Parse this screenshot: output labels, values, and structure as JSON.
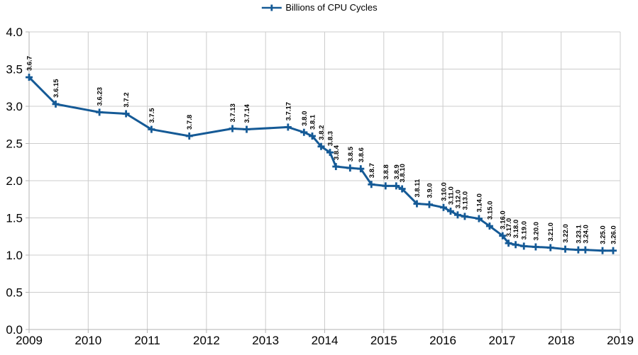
{
  "chart_data": {
    "type": "line",
    "title": "",
    "xlabel": "",
    "ylabel": "",
    "legend": {
      "label": "Billions of CPU Cycles",
      "position": "top-center",
      "marker": "line-plus"
    },
    "xlim": [
      2009,
      2019
    ],
    "ylim": [
      0.0,
      4.0
    ],
    "xticks": [
      "2009",
      "2010",
      "2011",
      "2012",
      "2013",
      "2014",
      "2015",
      "2016",
      "2017",
      "2018",
      "2019"
    ],
    "yticks": [
      "0.0",
      "0.5",
      "1.0",
      "1.5",
      "2.0",
      "2.5",
      "3.0",
      "3.5",
      "4.0"
    ],
    "grid": true,
    "colors": {
      "series": "#155a96",
      "gridline": "#cccccc",
      "axis": "#b3b3b3",
      "text": "#000000"
    },
    "series": [
      {
        "name": "Billions of CPU Cycles",
        "marker": "plus",
        "points": [
          {
            "label": "3.6.7",
            "x": 2009.0,
            "y": 3.39
          },
          {
            "label": "3.6.15",
            "x": 2009.45,
            "y": 3.03
          },
          {
            "label": "3.6.23",
            "x": 2010.19,
            "y": 2.92
          },
          {
            "label": "3.7.2",
            "x": 2010.64,
            "y": 2.9
          },
          {
            "label": "3.7.5",
            "x": 2011.07,
            "y": 2.69
          },
          {
            "label": "3.7.8",
            "x": 2011.71,
            "y": 2.6
          },
          {
            "label": "3.7.13",
            "x": 2012.44,
            "y": 2.7
          },
          {
            "label": "3.7.14",
            "x": 2012.68,
            "y": 2.69
          },
          {
            "label": "3.7.17",
            "x": 2013.38,
            "y": 2.72
          },
          {
            "label": "3.8.0",
            "x": 2013.65,
            "y": 2.65
          },
          {
            "label": "3.8.1",
            "x": 2013.79,
            "y": 2.6
          },
          {
            "label": "3.8.2",
            "x": 2013.94,
            "y": 2.46
          },
          {
            "label": "3.8.3",
            "x": 2014.09,
            "y": 2.38
          },
          {
            "label": "3.8.4",
            "x": 2014.19,
            "y": 2.19
          },
          {
            "label": "3.8.5",
            "x": 2014.43,
            "y": 2.17
          },
          {
            "label": "3.8.6",
            "x": 2014.61,
            "y": 2.16
          },
          {
            "label": "3.8.7",
            "x": 2014.79,
            "y": 1.95
          },
          {
            "label": "3.8.8",
            "x": 2015.03,
            "y": 1.93
          },
          {
            "label": "3.8.9",
            "x": 2015.21,
            "y": 1.93
          },
          {
            "label": "3.8.10",
            "x": 2015.31,
            "y": 1.89
          },
          {
            "label": "3.8.11",
            "x": 2015.56,
            "y": 1.69
          },
          {
            "label": "3.9.0",
            "x": 2015.77,
            "y": 1.68
          },
          {
            "label": "3.10.0",
            "x": 2016.01,
            "y": 1.64
          },
          {
            "label": "3.11.0",
            "x": 2016.13,
            "y": 1.59
          },
          {
            "label": "3.12.0",
            "x": 2016.25,
            "y": 1.54
          },
          {
            "label": "3.13.0",
            "x": 2016.37,
            "y": 1.52
          },
          {
            "label": "3.14.0",
            "x": 2016.61,
            "y": 1.49
          },
          {
            "label": "3.15.0",
            "x": 2016.79,
            "y": 1.39
          },
          {
            "label": "3.16.0",
            "x": 2017.01,
            "y": 1.26
          },
          {
            "label": "3.17.0",
            "x": 2017.11,
            "y": 1.16
          },
          {
            "label": "3.18.0",
            "x": 2017.23,
            "y": 1.14
          },
          {
            "label": "3.19.0",
            "x": 2017.37,
            "y": 1.12
          },
          {
            "label": "3.20.0",
            "x": 2017.57,
            "y": 1.11
          },
          {
            "label": "3.21.0",
            "x": 2017.82,
            "y": 1.1
          },
          {
            "label": "3.22.0",
            "x": 2018.07,
            "y": 1.08
          },
          {
            "label": "3.23.1",
            "x": 2018.29,
            "y": 1.07
          },
          {
            "label": "3.24.0",
            "x": 2018.41,
            "y": 1.07
          },
          {
            "label": "3.25.0",
            "x": 2018.7,
            "y": 1.06
          },
          {
            "label": "3.26.0",
            "x": 2018.88,
            "y": 1.06
          }
        ]
      }
    ]
  }
}
